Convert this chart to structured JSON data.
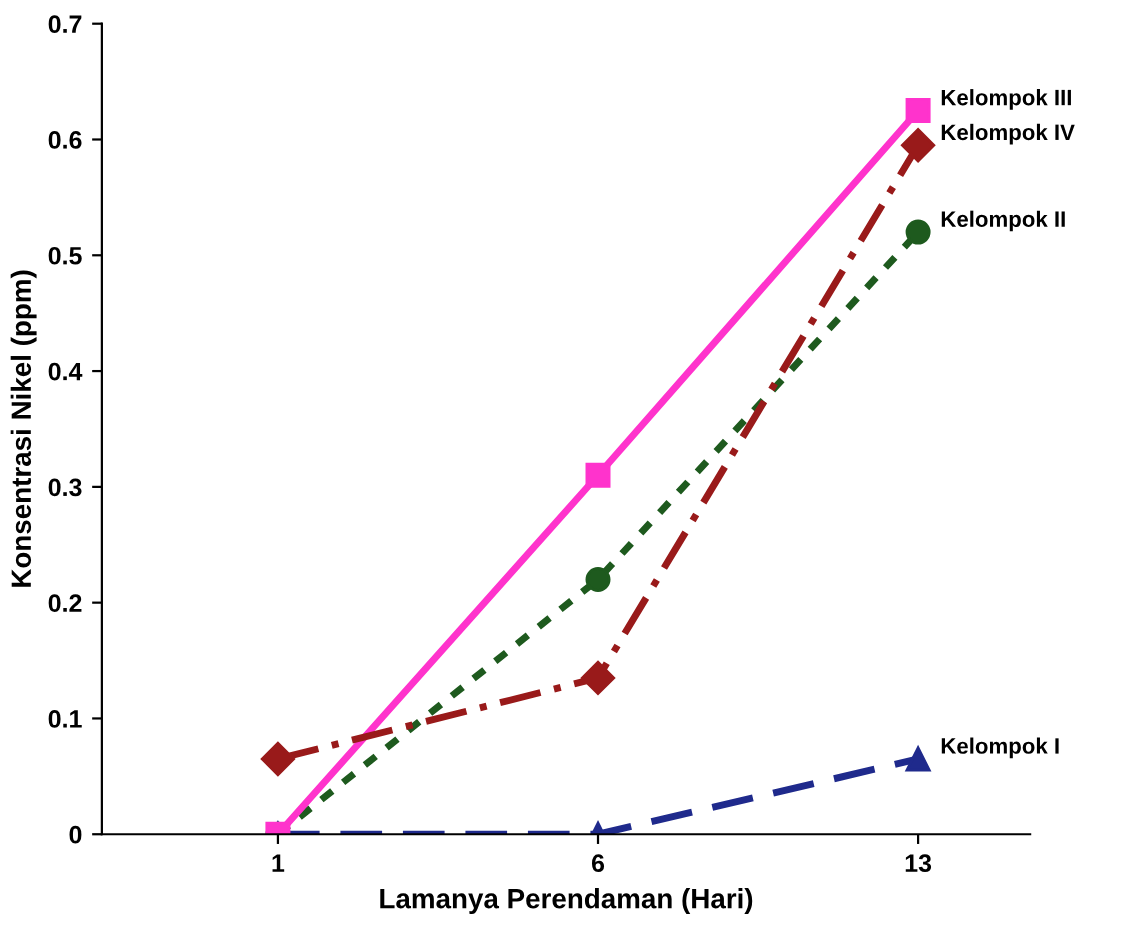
{
  "chart_data": {
    "type": "line",
    "xlabel": "Lamanya Perendaman (Hari)",
    "ylabel": "Konsentrasi Nikel (ppm)",
    "categories": [
      "1",
      "6",
      "13"
    ],
    "ylim": [
      0,
      0.7
    ],
    "yticks": [
      0,
      0.1,
      0.2,
      0.3,
      0.4,
      0.5,
      0.6,
      0.7
    ],
    "grid": false,
    "legend": false,
    "series": [
      {
        "name": "Kelompok I",
        "color": "#1f2a8c",
        "marker": "triangle",
        "line_style": "dashed",
        "values": [
          0,
          0,
          0.065
        ]
      },
      {
        "name": "Kelompok II",
        "color": "#1e5a1e",
        "marker": "circle",
        "line_style": "dotted",
        "values": [
          0,
          0.22,
          0.52
        ]
      },
      {
        "name": "Kelompok III",
        "color": "#ff33cc",
        "marker": "square",
        "line_style": "solid",
        "values": [
          0,
          0.31,
          0.625
        ]
      },
      {
        "name": "Kelompok IV",
        "color": "#991a1a",
        "marker": "diamond",
        "line_style": "dashdot",
        "values": [
          0.065,
          0.135,
          0.595
        ]
      }
    ]
  }
}
